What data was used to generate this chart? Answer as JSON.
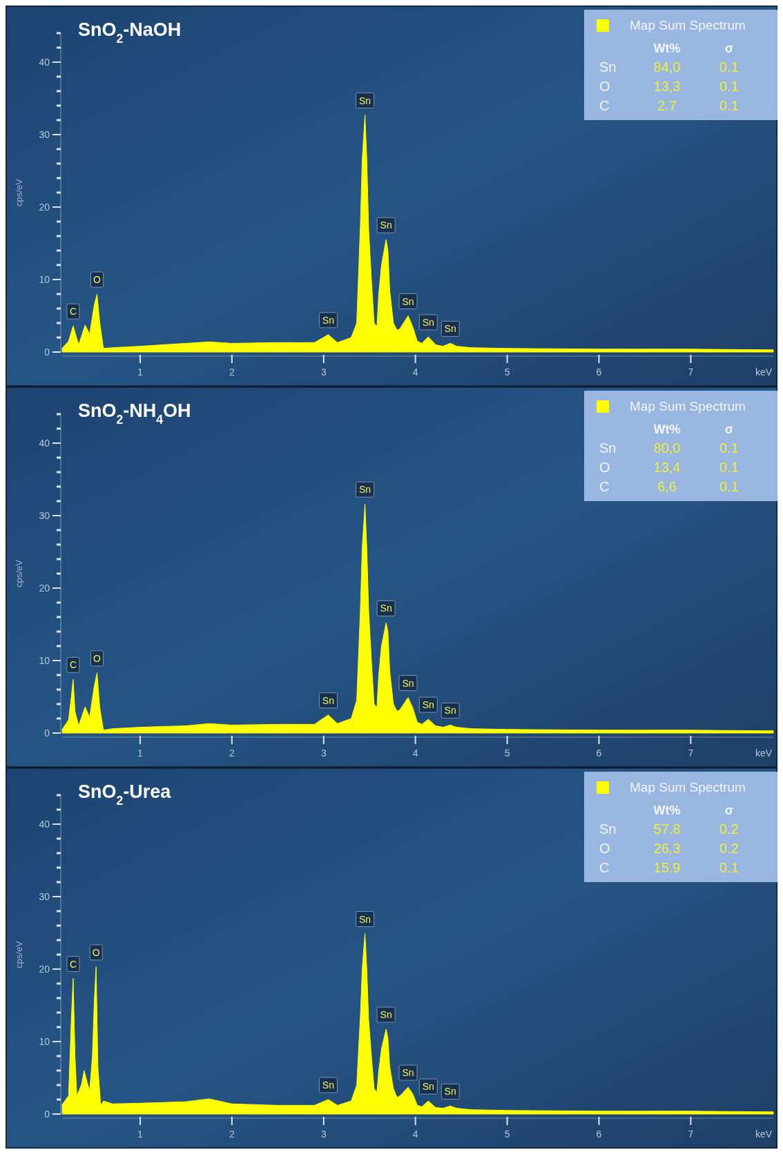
{
  "chart_data": [
    {
      "type": "area",
      "title": "SnO$_{2}$-NaOH",
      "xlabel": "keV",
      "ylabel": "cps/eV",
      "xlim": [
        0.15,
        7.9
      ],
      "ylim": [
        0,
        44
      ],
      "xticks": [
        1,
        2,
        3,
        4,
        5,
        6,
        7
      ],
      "yticks": [
        0,
        {
          "value": 2,
          "label": null
        },
        {
          "value": 4,
          "label": null
        },
        {
          "value": 6,
          "label": null
        },
        {
          "value": 8,
          "label": null
        },
        10,
        {
          "value": 12,
          "label": null
        },
        {
          "value": 14,
          "label": null
        },
        {
          "value": 16,
          "label": null
        },
        {
          "value": 18,
          "label": null
        },
        20,
        {
          "value": 22,
          "label": null
        },
        {
          "value": 24,
          "label": null
        },
        {
          "value": 26,
          "label": null
        },
        {
          "value": 28,
          "label": null
        },
        30,
        {
          "value": 32,
          "label": null
        },
        {
          "value": 34,
          "label": null
        },
        {
          "value": 36,
          "label": null
        },
        {
          "value": 38,
          "label": null
        },
        40,
        {
          "value": 42,
          "label": null
        },
        {
          "value": 44,
          "label": null
        }
      ],
      "legend": "top right",
      "x": [
        0.15,
        0.22,
        0.27,
        0.33,
        0.4,
        0.45,
        0.5,
        0.53,
        0.56,
        0.6,
        0.7,
        1.0,
        1.5,
        1.75,
        2.0,
        2.5,
        2.9,
        3.05,
        3.15,
        3.3,
        3.36,
        3.4,
        3.42,
        3.45,
        3.47,
        3.49,
        3.52,
        3.55,
        3.58,
        3.6,
        3.63,
        3.68,
        3.7,
        3.72,
        3.76,
        3.8,
        3.83,
        3.92,
        3.97,
        4.02,
        4.07,
        4.14,
        4.22,
        4.3,
        4.38,
        4.45,
        4.6,
        5.0,
        6.0,
        7.0,
        7.9
      ],
      "series": [
        {
          "name": "Map Sum Spectrum",
          "color": "#ffff00",
          "values": [
            0.5,
            1.5,
            3.6,
            1.0,
            3.7,
            2.5,
            6.5,
            8.0,
            4.0,
            0.5,
            0.6,
            0.8,
            1.2,
            1.4,
            1.2,
            1.3,
            1.3,
            2.4,
            1.3,
            2.0,
            4.0,
            17.5,
            26.5,
            32.7,
            26.5,
            17.0,
            10.0,
            4.0,
            3.5,
            8.0,
            12.0,
            15.5,
            14.0,
            8.5,
            4.0,
            3.0,
            3.2,
            5.0,
            3.5,
            1.5,
            1.2,
            2.1,
            1.0,
            0.8,
            1.2,
            0.8,
            0.6,
            0.5,
            0.4,
            0.4,
            0.3
          ]
        }
      ],
      "annotations": [
        {
          "text": "C",
          "x": 0.27,
          "y": 3.6
        },
        {
          "text": "O",
          "x": 0.53,
          "y": 8.0
        },
        {
          "text": "Sn",
          "x": 3.05,
          "y": 2.4
        },
        {
          "text": "Sn",
          "x": 3.45,
          "y": 32.7
        },
        {
          "text": "Sn",
          "x": 3.68,
          "y": 15.5
        },
        {
          "text": "Sn",
          "x": 3.92,
          "y": 5.0
        },
        {
          "text": "Sn",
          "x": 4.14,
          "y": 2.1
        },
        {
          "text": "Sn",
          "x": 4.38,
          "y": 1.2
        },
        "Wt%",
        "σ",
        "Sn",
        "84,0",
        "0.1",
        "O",
        "13,3",
        "0.1",
        "C",
        "2.7",
        "0.1"
      ]
    },
    {
      "type": "area",
      "title": "SnO$_{2}$-NH$_{4}$OH",
      "xlabel": "keV",
      "ylabel": "cps/eV",
      "xlim": [
        0.15,
        7.9
      ],
      "ylim": [
        0,
        44
      ],
      "xticks": [
        1,
        2,
        3,
        4,
        5,
        6,
        7
      ],
      "yticks": [
        0,
        {
          "value": 2,
          "label": null
        },
        {
          "value": 4,
          "label": null
        },
        {
          "value": 6,
          "label": null
        },
        {
          "value": 8,
          "label": null
        },
        10,
        {
          "value": 12,
          "label": null
        },
        {
          "value": 14,
          "label": null
        },
        {
          "value": 16,
          "label": null
        },
        {
          "value": 18,
          "label": null
        },
        20,
        {
          "value": 22,
          "label": null
        },
        {
          "value": 24,
          "label": null
        },
        {
          "value": 26,
          "label": null
        },
        {
          "value": 28,
          "label": null
        },
        30,
        {
          "value": 32,
          "label": null
        },
        {
          "value": 34,
          "label": null
        },
        {
          "value": 36,
          "label": null
        },
        {
          "value": 38,
          "label": null
        },
        40,
        {
          "value": 42,
          "label": null
        },
        {
          "value": 44,
          "label": null
        }
      ],
      "legend": "top right",
      "x": [
        0.15,
        0.22,
        0.25,
        0.27,
        0.29,
        0.33,
        0.4,
        0.45,
        0.5,
        0.53,
        0.56,
        0.6,
        0.7,
        1.0,
        1.5,
        1.75,
        2.0,
        2.5,
        2.9,
        3.05,
        3.15,
        3.3,
        3.36,
        3.4,
        3.42,
        3.45,
        3.47,
        3.49,
        3.52,
        3.55,
        3.58,
        3.6,
        3.63,
        3.68,
        3.7,
        3.72,
        3.76,
        3.8,
        3.83,
        3.92,
        3.97,
        4.02,
        4.07,
        4.14,
        4.22,
        4.3,
        4.38,
        4.45,
        4.6,
        5.0,
        6.0,
        7.0,
        7.9
      ],
      "series": [
        {
          "name": "Map Sum Spectrum",
          "color": "#ffff00",
          "values": [
            0.5,
            1.8,
            5.0,
            7.4,
            3.0,
            1.0,
            3.6,
            2.2,
            6.5,
            8.3,
            3.5,
            0.4,
            0.6,
            0.8,
            1.0,
            1.3,
            1.1,
            1.2,
            1.2,
            2.5,
            1.3,
            2.0,
            4.5,
            17.0,
            25.5,
            31.6,
            25.5,
            17.0,
            10.0,
            4.0,
            3.5,
            8.0,
            12.0,
            15.2,
            14.0,
            8.5,
            4.0,
            3.0,
            3.2,
            4.9,
            3.5,
            1.5,
            1.2,
            1.9,
            1.0,
            0.8,
            1.1,
            0.8,
            0.6,
            0.5,
            0.4,
            0.4,
            0.3
          ]
        }
      ],
      "annotations": [
        {
          "text": "C",
          "x": 0.27,
          "y": 7.4
        },
        {
          "text": "O",
          "x": 0.53,
          "y": 8.3
        },
        {
          "text": "Sn",
          "x": 3.05,
          "y": 2.5
        },
        {
          "text": "Sn",
          "x": 3.45,
          "y": 31.6
        },
        {
          "text": "Sn",
          "x": 3.68,
          "y": 15.2
        },
        {
          "text": "Sn",
          "x": 3.92,
          "y": 4.9
        },
        {
          "text": "Sn",
          "x": 4.14,
          "y": 1.9
        },
        {
          "text": "Sn",
          "x": 4.38,
          "y": 1.1
        },
        "Wt%",
        "σ",
        "Sn",
        "80,0",
        "0.1",
        "O",
        "13,4",
        "0.1",
        "C",
        "6,6",
        "0.1"
      ]
    },
    {
      "type": "area",
      "title": "SnO$_{2}$-Urea",
      "xlabel": "keV",
      "ylabel": "cps/eV",
      "xlim": [
        0.15,
        7.9
      ],
      "ylim": [
        0,
        44
      ],
      "xticks": [
        1,
        2,
        3,
        4,
        5,
        6,
        7
      ],
      "yticks": [
        0,
        {
          "value": 2,
          "label": null
        },
        {
          "value": 4,
          "label": null
        },
        {
          "value": 6,
          "label": null
        },
        {
          "value": 8,
          "label": null
        },
        10,
        {
          "value": 12,
          "label": null
        },
        {
          "value": 14,
          "label": null
        },
        {
          "value": 16,
          "label": null
        },
        {
          "value": 18,
          "label": null
        },
        20,
        {
          "value": 22,
          "label": null
        },
        {
          "value": 24,
          "label": null
        },
        {
          "value": 26,
          "label": null
        },
        {
          "value": 28,
          "label": null
        },
        30,
        {
          "value": 32,
          "label": null
        },
        {
          "value": 34,
          "label": null
        },
        {
          "value": 36,
          "label": null
        },
        {
          "value": 38,
          "label": null
        },
        40,
        {
          "value": 42,
          "label": null
        },
        {
          "value": 44,
          "label": null
        }
      ],
      "legend": "top right",
      "x": [
        0.15,
        0.22,
        0.25,
        0.27,
        0.29,
        0.31,
        0.36,
        0.39,
        0.42,
        0.45,
        0.48,
        0.5,
        0.52,
        0.54,
        0.57,
        0.6,
        0.7,
        1.0,
        1.5,
        1.75,
        2.0,
        2.5,
        2.9,
        3.05,
        3.15,
        3.3,
        3.36,
        3.4,
        3.42,
        3.45,
        3.47,
        3.49,
        3.52,
        3.55,
        3.58,
        3.6,
        3.63,
        3.68,
        3.7,
        3.72,
        3.76,
        3.8,
        3.83,
        3.92,
        3.97,
        4.02,
        4.07,
        4.14,
        4.22,
        4.3,
        4.38,
        4.45,
        4.6,
        5.0,
        6.0,
        7.0,
        7.9
      ],
      "series": [
        {
          "name": "Map Sum Spectrum",
          "color": "#ffff00",
          "values": [
            1.3,
            2.5,
            13.0,
            18.7,
            8.0,
            2.5,
            4.0,
            6.0,
            4.5,
            3.2,
            8.0,
            15.5,
            20.3,
            6.5,
            1.2,
            1.8,
            1.4,
            1.5,
            1.7,
            2.1,
            1.4,
            1.2,
            1.2,
            2.0,
            1.2,
            1.8,
            4.0,
            13.5,
            20.0,
            24.9,
            20.0,
            13.0,
            8.0,
            3.5,
            3.0,
            6.0,
            9.0,
            11.7,
            10.5,
            6.5,
            3.5,
            2.3,
            2.5,
            3.7,
            2.8,
            1.2,
            1.0,
            1.8,
            0.9,
            0.8,
            1.1,
            0.8,
            0.6,
            0.5,
            0.4,
            0.4,
            0.3
          ]
        }
      ],
      "annotations": [
        {
          "text": "C",
          "x": 0.27,
          "y": 18.7
        },
        {
          "text": "O",
          "x": 0.52,
          "y": 20.3
        },
        {
          "text": "Sn",
          "x": 3.05,
          "y": 2.0
        },
        {
          "text": "Sn",
          "x": 3.45,
          "y": 24.9
        },
        {
          "text": "Sn",
          "x": 3.68,
          "y": 11.7
        },
        {
          "text": "Sn",
          "x": 3.92,
          "y": 3.7
        },
        {
          "text": "Sn",
          "x": 4.14,
          "y": 1.8
        },
        {
          "text": "Sn",
          "x": 4.38,
          "y": 1.1
        },
        "Wt%",
        "σ",
        "Sn",
        "57.8",
        "0.2",
        "O",
        "26.3",
        "0.2",
        "C",
        "15.9",
        "0.1"
      ]
    }
  ]
}
